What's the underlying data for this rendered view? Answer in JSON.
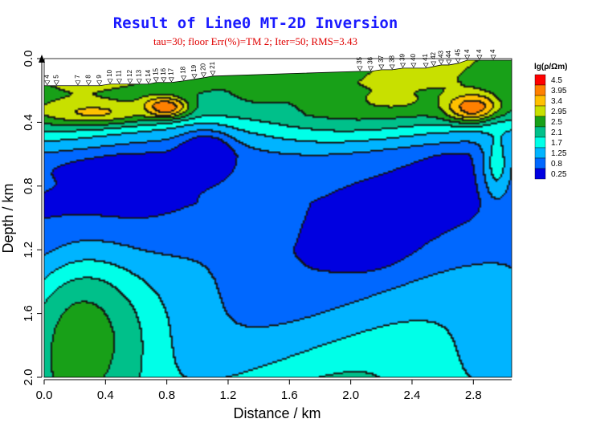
{
  "chart_data": {
    "type": "heatmap",
    "title": "Result of Line0 MT-2D Inversion",
    "subtitle": "tau=30; floor Err(%)=TM 2;  Iter=50; RMS=3.43",
    "xlabel": "Distance / km",
    "ylabel": "Depth / km",
    "xlim": [
      0.0,
      3.05
    ],
    "ylim": [
      0.0,
      2.0
    ],
    "y_inverted": true,
    "x_ticks": [
      "0.0",
      "0.4",
      "0.8",
      "1.2",
      "1.6",
      "2.0",
      "2.4",
      "2.8"
    ],
    "y_ticks": [
      "0.0",
      "0.4",
      "0.8",
      "1.2",
      "1.6",
      "2.0"
    ],
    "x_tick_values": [
      0.0,
      0.4,
      0.8,
      1.2,
      1.6,
      2.0,
      2.4,
      2.8
    ],
    "y_tick_values": [
      0.0,
      0.4,
      0.8,
      1.2,
      1.6,
      2.0
    ],
    "colorbar": {
      "title": "lg(ρ/Ωm)",
      "levels": [
        "4.5",
        "3.95",
        "3.4",
        "2.95",
        "2.5",
        "2.1",
        "1.7",
        "1.25",
        "0.8",
        "0.25"
      ],
      "level_values": [
        4.5,
        3.95,
        3.4,
        2.95,
        2.5,
        2.1,
        1.7,
        1.25,
        0.8,
        0.25
      ],
      "colors": [
        "#ff0000",
        "#ff8000",
        "#ffc000",
        "#c8e000",
        "#18a018",
        "#00c08a",
        "#00ffe8",
        "#00b4ff",
        "#0068ff",
        "#0000e0"
      ]
    },
    "stations": {
      "labels": [
        "4",
        "5",
        "7",
        "8",
        "9",
        "10",
        "11",
        "12",
        "13",
        "14",
        "15",
        "16",
        "17",
        "18",
        "19",
        "20",
        "21",
        "35",
        "36",
        "37",
        "38",
        "39",
        "40",
        "41",
        "42",
        "43",
        "44",
        "45",
        "4",
        "4",
        "4"
      ],
      "x": [
        0.02,
        0.08,
        0.22,
        0.29,
        0.36,
        0.43,
        0.49,
        0.56,
        0.62,
        0.68,
        0.73,
        0.78,
        0.83,
        0.91,
        0.98,
        1.04,
        1.1,
        2.06,
        2.13,
        2.2,
        2.27,
        2.34,
        2.41,
        2.49,
        2.54,
        2.59,
        2.64,
        2.7,
        2.76,
        2.84,
        2.93
      ],
      "depth": [
        0.17,
        0.17,
        0.17,
        0.17,
        0.17,
        0.16,
        0.16,
        0.16,
        0.16,
        0.16,
        0.15,
        0.15,
        0.15,
        0.14,
        0.13,
        0.12,
        0.11,
        0.08,
        0.08,
        0.07,
        0.07,
        0.06,
        0.06,
        0.06,
        0.05,
        0.04,
        0.04,
        0.03,
        0.01,
        0.01,
        0.01
      ]
    },
    "anomalies": [
      {
        "x": 0.78,
        "depth": 0.3,
        "rx": 0.14,
        "ry": 0.06,
        "value": 4.6
      },
      {
        "x": 2.8,
        "depth": 0.3,
        "rx": 0.18,
        "ry": 0.085,
        "value": 4.4
      },
      {
        "x": 0.32,
        "depth": 0.33,
        "rx": 0.33,
        "ry": 0.07,
        "value": 3.5
      },
      {
        "x": 2.27,
        "depth": 0.26,
        "rx": 0.2,
        "ry": 0.05,
        "value": 3.1
      },
      {
        "x": 1.4,
        "depth": 0.19,
        "rx": 0.14,
        "ry": 0.07,
        "value": 2.9
      },
      {
        "x": 1.05,
        "depth": 0.6,
        "rx": 0.16,
        "ry": 0.13,
        "value": 0.0
      },
      {
        "x": 0.5,
        "depth": 0.7,
        "rx": 0.4,
        "ry": 0.07,
        "value": 0.3
      },
      {
        "x": 2.12,
        "depth": 1.08,
        "rx": 0.2,
        "ry": 0.17,
        "value": 0.0
      },
      {
        "x": 0.25,
        "depth": 1.75,
        "rx": 0.4,
        "ry": 0.55,
        "value": 2.7
      },
      {
        "x": 2.95,
        "depth": 0.65,
        "rx": 0.1,
        "ry": 0.25,
        "value": 1.9
      }
    ],
    "base_profile": {
      "depth": [
        0.0,
        0.15,
        0.35,
        0.6,
        0.9,
        1.2,
        1.6,
        2.0
      ],
      "value": [
        2.8,
        2.8,
        2.4,
        1.0,
        0.7,
        0.9,
        1.4,
        1.9
      ]
    }
  }
}
